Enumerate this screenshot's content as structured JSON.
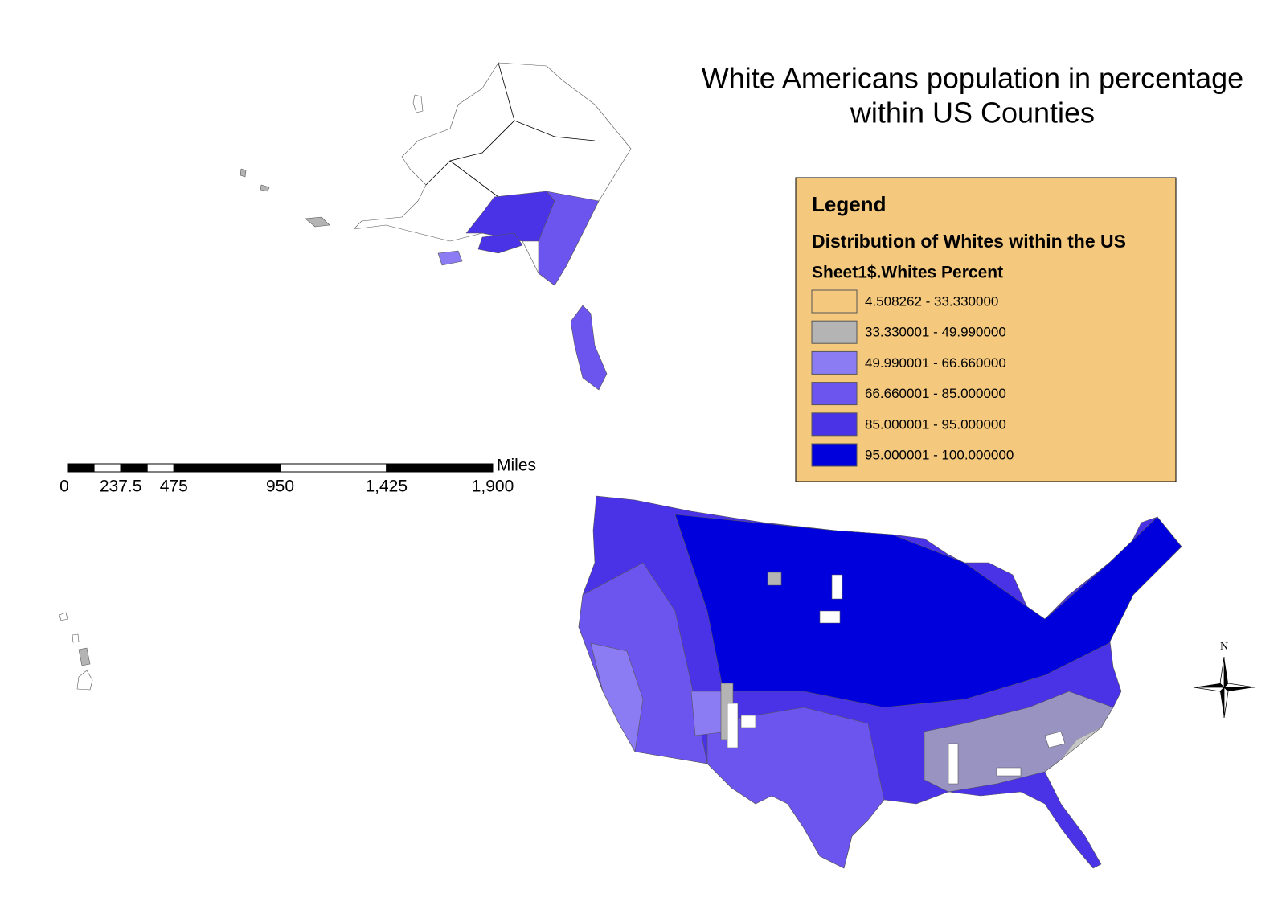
{
  "title": [
    "White Americans population in percentage",
    "within US Counties"
  ],
  "legend": {
    "heading": "Legend",
    "layer": "Distribution of Whites within the US",
    "field": "Sheet1$.Whites Percent",
    "classes": [
      {
        "label": "4.508262 - 33.330000",
        "color": "none"
      },
      {
        "label": "33.330001 - 49.990000",
        "color": "#b4b4b4"
      },
      {
        "label": "49.990001 - 66.660000",
        "color": "#8c7cf4"
      },
      {
        "label": "66.660001 - 85.000000",
        "color": "#6b55ee"
      },
      {
        "label": "85.000001 - 95.000000",
        "color": "#4a32e6"
      },
      {
        "label": "95.000001 - 100.000000",
        "color": "#0000dc"
      }
    ]
  },
  "scale_bar": {
    "unit": "Miles",
    "ticks": [
      0,
      237.5,
      475,
      950,
      {
        "value": 1425,
        "label": "1,425"
      },
      {
        "value": 1900,
        "label": "1,900"
      }
    ]
  },
  "north_arrow": "N"
}
